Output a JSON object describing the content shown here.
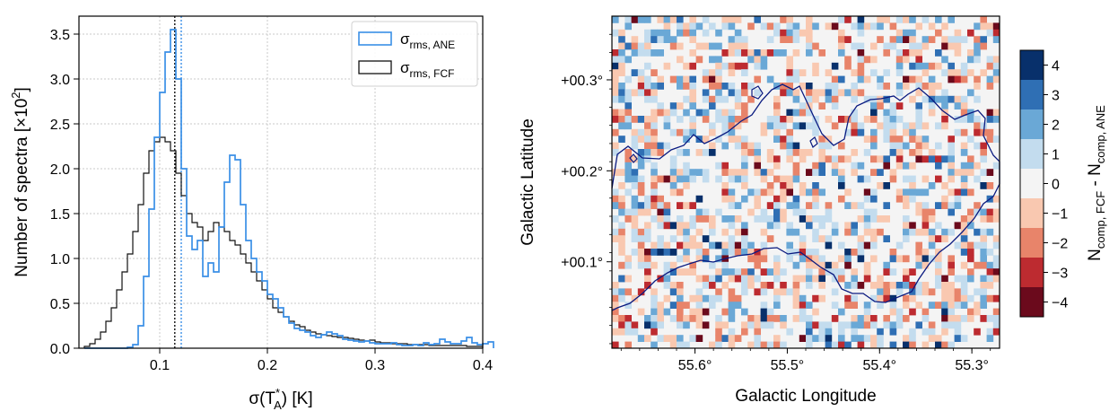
{
  "chart_data": [
    {
      "type": "histogram-step",
      "xlabel": "σ(T*A) [K]",
      "xlabel_parts": {
        "main": "σ(T",
        "sup": "*",
        "sub": "A",
        "tail": ") [K]"
      },
      "ylabel": "Number of spectra [×10²]",
      "ylabel_parts": {
        "main": "Number of spectra [×10",
        "sup": "2",
        "tail": "]"
      },
      "xlim": [
        0.025,
        0.4
      ],
      "ylim": [
        0,
        3.7
      ],
      "xticks": [
        0.1,
        0.2,
        0.3,
        0.4
      ],
      "xtick_labels": [
        "0.1",
        "0.2",
        "0.3",
        "0.4"
      ],
      "yticks": [
        0,
        0.5,
        1,
        1.5,
        2,
        2.5,
        3,
        3.5
      ],
      "ytick_labels": [
        "0.0",
        "0.5",
        "1.0",
        "1.5",
        "2.0",
        "2.5",
        "3.0",
        "3.5"
      ],
      "grid": true,
      "legend": "top-right",
      "bin_width": 0.005,
      "series": [
        {
          "name": "σrms, ANE",
          "name_main": "σ",
          "name_sub": "rms, ANE",
          "color": "#3a8fe6",
          "bins_start": 0.03,
          "values": [
            0,
            0,
            0,
            0,
            0,
            0,
            0,
            0,
            0.01,
            0.04,
            0.25,
            0.8,
            1.55,
            2.35,
            2.85,
            3.3,
            3.55,
            3.0,
            2.0,
            1.25,
            1.1,
            1.2,
            0.8,
            0.95,
            0.85,
            1.35,
            1.85,
            2.15,
            2.1,
            1.6,
            1.2,
            1.0,
            0.85,
            0.75,
            0.6,
            0.55,
            0.45,
            0.35,
            0.28,
            0.22,
            0.2,
            0.18,
            0.14,
            0.12,
            0.15,
            0.18,
            0.16,
            0.14,
            0.1,
            0.09,
            0.08,
            0.07,
            0.08,
            0.06,
            0.05,
            0.05,
            0.05,
            0.06,
            0.04,
            0.03,
            0.03,
            0.04,
            0.03,
            0.06,
            0.04,
            0.05,
            0.1,
            0.07,
            0.05,
            0.05,
            0.08,
            0.12,
            0.06,
            0.04,
            0.05,
            0.07
          ]
        },
        {
          "name": "σrms, FCF",
          "name_main": "σ",
          "name_sub": "rms, FCF",
          "color": "#111111",
          "bins_start": 0.03,
          "values": [
            0.02,
            0.05,
            0.1,
            0.18,
            0.3,
            0.45,
            0.65,
            0.85,
            1.05,
            1.3,
            1.6,
            1.95,
            2.2,
            2.3,
            2.35,
            2.3,
            2.2,
            1.95,
            1.7,
            1.5,
            1.4,
            1.35,
            1.2,
            1.3,
            1.4,
            1.35,
            1.3,
            1.2,
            1.15,
            1.05,
            0.95,
            0.85,
            0.75,
            0.65,
            0.55,
            0.45,
            0.4,
            0.35,
            0.3,
            0.26,
            0.24,
            0.2,
            0.18,
            0.16,
            0.15,
            0.14,
            0.13,
            0.12,
            0.12,
            0.11,
            0.1,
            0.09,
            0.08,
            0.09,
            0.07,
            0.06,
            0.06,
            0.05,
            0.05,
            0.05,
            0.04,
            0.04,
            0.04,
            0.04,
            0.03,
            0.03,
            0.03,
            0.03,
            0.03,
            0.03,
            0.03,
            0.02,
            0.02,
            0.02
          ]
        }
      ],
      "vlines": [
        {
          "x": 0.114,
          "color": "#111111"
        },
        {
          "x": 0.12,
          "color": "#3a8fe6"
        }
      ]
    },
    {
      "type": "heatmap",
      "xlabel": "Galactic Longitude",
      "ylabel": "Galactic Latitude",
      "xlim": [
        55.69,
        55.27
      ],
      "ylim": [
        0.005,
        0.37
      ],
      "xticks": [
        55.6,
        55.5,
        55.4,
        55.3
      ],
      "xtick_labels": [
        "55.6°",
        "55.5°",
        "55.4°",
        "55.3°"
      ],
      "yticks": [
        0.1,
        0.2,
        0.3
      ],
      "ytick_labels": [
        "+00.1°",
        "+00.2°",
        "+00.3°"
      ],
      "grid_cols": 60,
      "grid_rows": 50,
      "cell_probabilities": {
        "0": 0.5,
        "1": 0.145,
        "2": 0.075,
        "3": 0.028,
        "4": 0.012,
        "-1": 0.13,
        "-2": 0.07,
        "-3": 0.025,
        "-4": 0.015
      },
      "colorbar": {
        "label": "Ncomp, FCF - Ncomp, ANE",
        "label_parts": {
          "n1": "N",
          "s1": "comp, FCF",
          "mid": " - N",
          "s2": "comp, ANE"
        },
        "ticks": [
          4,
          3,
          2,
          1,
          0,
          -1,
          -2,
          -3,
          -4
        ],
        "tick_labels": [
          "4",
          "3",
          "2",
          "1",
          "0",
          "−1",
          "−2",
          "−3",
          "−4"
        ],
        "colors": {
          "4": "#08306b",
          "3": "#2f6fb4",
          "2": "#6aa8d6",
          "1": "#c3dcee",
          "0": "#f4f4f4",
          "-1": "#f9c8b0",
          "-2": "#e8846a",
          "-3": "#bd2b30",
          "-4": "#6b0a1c"
        }
      },
      "contour_color": "#0a1a80"
    }
  ]
}
